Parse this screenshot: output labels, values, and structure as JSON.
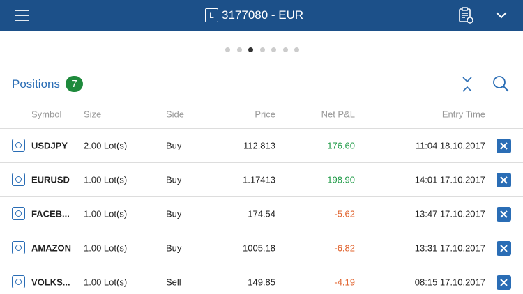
{
  "header": {
    "account_type": "L",
    "account": "3177080 - EUR"
  },
  "pager": {
    "pages": 7,
    "current": 3
  },
  "positions": {
    "title": "Positions",
    "count": 7,
    "columns": [
      "Symbol",
      "Size",
      "Side",
      "Price",
      "Net P&L",
      "Entry Time"
    ],
    "rows": [
      [
        "USDJPY",
        "2.00 Lot(s)",
        "Buy",
        "112.813",
        "176.60",
        "11:04 18.10.2017"
      ],
      [
        "EURUSD",
        "1.00 Lot(s)",
        "Buy",
        "1.17413",
        "198.90",
        "14:01 17.10.2017"
      ],
      [
        "FACEB...",
        "1.00 Lot(s)",
        "Buy",
        "174.54",
        "-5.62",
        "13:47 17.10.2017"
      ],
      [
        "AMAZON",
        "1.00 Lot(s)",
        "Buy",
        "1005.18",
        "-6.82",
        "13:31 17.10.2017"
      ],
      [
        "VOLKS...",
        "1.00 Lot(s)",
        "Sell",
        "149.85",
        "-4.19",
        "08:15 17.10.2017"
      ]
    ]
  }
}
